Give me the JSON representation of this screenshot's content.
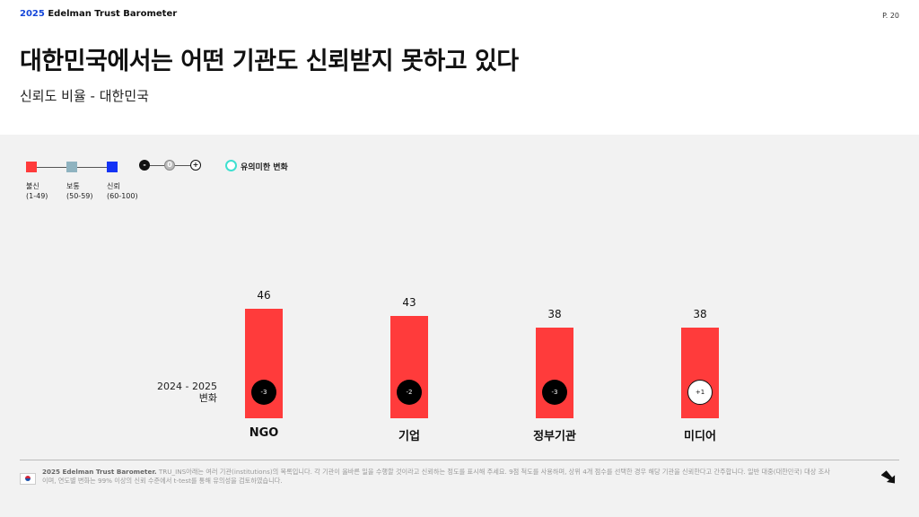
{
  "header": {
    "brand_year": "2025",
    "brand_name": "Edelman Trust Barometer",
    "page_number": "P. 20"
  },
  "title": "대한민국에서는 어떤 기관도 신뢰받지 못하고 있다",
  "subtitle": "신뢰도 비율 - 대한민국",
  "legend": {
    "trust_levels": [
      {
        "label": "불신",
        "range": "(1-49)",
        "color": "#ff3b3b"
      },
      {
        "label": "보통",
        "range": "(50-59)",
        "color": "#8fb3c0"
      },
      {
        "label": "신뢰",
        "range": "(60-100)",
        "color": "#1433f5"
      }
    ],
    "change_scale": {
      "minus": "-",
      "zero": "0",
      "plus": "+"
    },
    "significant_label": "유의미한 변화"
  },
  "change_row_label": [
    "2024 - 2025",
    "변화"
  ],
  "chart_data": {
    "type": "bar",
    "title": "신뢰도 비율 - 대한민국",
    "categories": [
      "NGO",
      "기업",
      "정부기관",
      "미디어"
    ],
    "values": [
      46,
      43,
      38,
      38
    ],
    "changes": [
      "-3",
      "-2",
      "-3",
      "+1"
    ],
    "change_style": [
      "negative",
      "negative",
      "negative",
      "positive"
    ],
    "bar_color": "#ff3b3b",
    "ylim": [
      0,
      100
    ]
  },
  "footer": {
    "source_bold": "2025 Edelman Trust Barometer.",
    "source_text": " TRU_INS아래는 여러 기관(institutions)의 목록입니다. 각 기관이 올바른 일을 수행할 것이라고 신뢰하는 정도를 표시해 주세요. 9점 척도를 사용하며, 상위 4개 점수를 선택한 경우 해당 기관을 신뢰한다고 간주합니다. 일반 대중(대한민국) 대상 조사이며, 연도별 변화는 99% 이상의 신뢰 수준에서 t-test를 통해 유의성을 검토하였습니다."
  }
}
